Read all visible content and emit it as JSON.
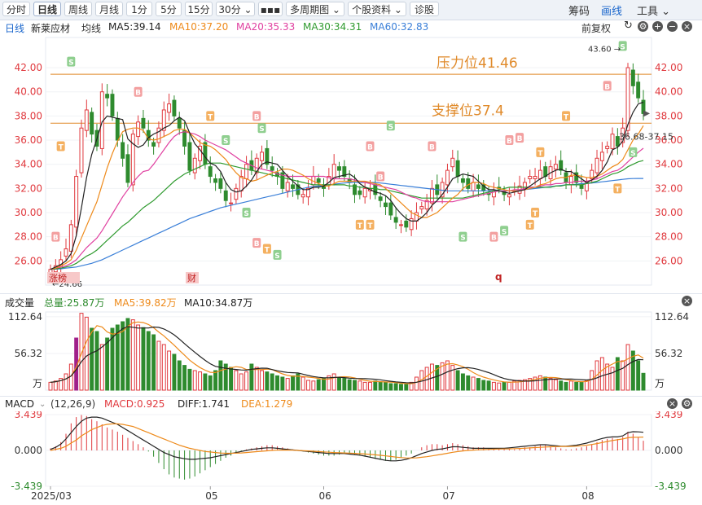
{
  "toolbar": {
    "left_buttons": [
      "分时",
      "日线",
      "周线",
      "月线",
      "1分",
      "5分",
      "15分",
      "30分 ⌄",
      "▪▪▪",
      "多周期图 ⌄",
      "个股资料 ⌄",
      "诊股"
    ],
    "active": "日线",
    "right_items": [
      "筹码",
      "画线",
      "工具 ⌄"
    ]
  },
  "info": {
    "period": "日线",
    "name": "新莱应材",
    "ma_label": "均线",
    "ma5": "MA5:39.14",
    "ma10": "MA10:37.20",
    "ma20": "MA20:35.33",
    "ma30": "MA30:34.31",
    "ma60": "MA60:32.83",
    "adjust": "前复权"
  },
  "colors": {
    "up": "#e0393e",
    "down": "#2e8b2e",
    "ma5": "#222222",
    "ma10": "#ee8a1a",
    "ma20": "#e040a0",
    "ma30": "#2e9a2e",
    "ma60": "#3a7fd8",
    "resistance": "#e08a2a",
    "support": "#e08a2a"
  },
  "annotations": {
    "resistance_label": "压力位41.46",
    "support_label": "支撑位37.4",
    "high_label": "43.60",
    "low_label": "24.66",
    "last_label": "36.68-37.15",
    "event1": "涨榜",
    "event2": "财",
    "event3": "q"
  },
  "volume_info": {
    "title": "成交量",
    "total": "总量:25.87万",
    "ma5": "MA5:39.82万",
    "ma10": "MA10:34.87万",
    "unit": "万"
  },
  "macd_info": {
    "title": "MACD",
    "params": "(12,26,9)",
    "macd": "MACD:0.925",
    "diff": "DIFF:1.741",
    "dea": "DEA:1.279"
  },
  "chart_data": [
    {
      "type": "candlestick",
      "title": "",
      "y_ticks": [
        26.0,
        28.0,
        30.0,
        32.0,
        34.0,
        36.0,
        38.0,
        40.0,
        42.0
      ],
      "ylim": [
        24.0,
        44.5
      ],
      "x_ticks": [
        "2025/03",
        "05",
        "06",
        "07",
        "08"
      ],
      "x_tick_index": [
        0,
        31,
        53,
        77,
        104
      ],
      "resistance": 41.46,
      "support": 37.4,
      "high": 43.6,
      "low": 24.66,
      "closes": [
        25.3,
        25.6,
        26.1,
        27.0,
        29.0,
        33.0,
        37.0,
        38.5,
        36.5,
        35.5,
        40.0,
        39.5,
        38.0,
        36.0,
        34.5,
        32.5,
        36.5,
        37.5,
        37.0,
        36.0,
        35.5,
        37.0,
        38.5,
        39.0,
        38.0,
        37.0,
        35.5,
        33.5,
        34.5,
        35.5,
        34.0,
        33.0,
        32.5,
        32.0,
        31.0,
        30.8,
        32.0,
        33.0,
        34.0,
        33.5,
        34.5,
        35.0,
        34.0,
        33.5,
        33.0,
        32.0,
        32.5,
        32.0,
        31.5,
        31.5,
        32.0,
        33.0,
        32.5,
        32.0,
        33.0,
        34.0,
        33.5,
        33.0,
        32.5,
        31.5,
        31.5,
        32.0,
        32.0,
        31.5,
        31.0,
        30.5,
        29.8,
        29.2,
        29.0,
        28.8,
        29.5,
        30.0,
        30.5,
        31.0,
        32.0,
        31.5,
        32.5,
        33.5,
        34.5,
        33.0,
        32.5,
        32.0,
        32.5,
        32.0,
        31.8,
        31.5,
        31.8,
        32.0,
        31.5,
        31.5,
        31.8,
        32.2,
        32.5,
        33.0,
        33.0,
        33.5,
        33.0,
        33.8,
        34.0,
        33.5,
        32.5,
        33.0,
        32.5,
        32.0,
        32.5,
        33.5,
        34.5,
        35.0,
        35.5,
        36.5,
        35.5,
        37.0,
        42.0,
        40.5,
        39.5,
        38.2
      ],
      "ma5": [
        25.3,
        25.5,
        25.7,
        26.0,
        26.6,
        28.1,
        30.4,
        32.9,
        34.8,
        36.1,
        37.5,
        38.0,
        37.9,
        37.8,
        37.7,
        36.1,
        35.7,
        35.4,
        35.6,
        36.2,
        36.5,
        36.7,
        37.0,
        37.2,
        37.6,
        37.9,
        37.6,
        36.6,
        35.7,
        35.2,
        34.6,
        34.1,
        33.9,
        33.4,
        32.5,
        31.9,
        31.7,
        31.8,
        32.2,
        32.7,
        33.4,
        34.0,
        34.2,
        34.1,
        34.0,
        33.5,
        33.0,
        32.6,
        32.2,
        31.9,
        31.9,
        32.1,
        32.1,
        32.2,
        32.5,
        32.9,
        33.0,
        33.1,
        33.2,
        32.9,
        32.4,
        32.1,
        31.9,
        31.7,
        31.6,
        31.4,
        31.0,
        30.4,
        29.9,
        29.5,
        29.3,
        29.3,
        29.6,
        30.0,
        30.6,
        31.0,
        31.5,
        32.1,
        32.8,
        33.0,
        33.2,
        33.1,
        33.0,
        32.6,
        32.2,
        31.9,
        31.9,
        31.8,
        31.7,
        31.6,
        31.7,
        31.8,
        31.9,
        32.2,
        32.5,
        32.8,
        33.0,
        33.3,
        33.5,
        33.6,
        33.4,
        33.4,
        33.1,
        32.8,
        32.5,
        32.7,
        33.0,
        33.5,
        34.2,
        35.2,
        35.4,
        35.9,
        37.3,
        38.3,
        39.0,
        39.14
      ],
      "ma10": [
        25.3,
        25.4,
        25.6,
        25.8,
        26.1,
        26.9,
        27.9,
        28.9,
        29.9,
        30.9,
        32.3,
        33.7,
        34.9,
        35.9,
        36.7,
        36.9,
        37.0,
        37.0,
        36.8,
        36.1,
        36.0,
        36.1,
        36.3,
        36.5,
        36.8,
        36.9,
        36.9,
        36.6,
        36.2,
        35.8,
        35.6,
        35.5,
        35.2,
        34.8,
        34.4,
        33.8,
        33.3,
        32.9,
        32.8,
        32.6,
        32.7,
        32.9,
        33.1,
        33.3,
        33.4,
        33.6,
        33.6,
        33.5,
        33.3,
        33.1,
        32.8,
        32.6,
        32.4,
        32.2,
        32.2,
        32.4,
        32.6,
        32.6,
        32.6,
        32.6,
        32.6,
        32.6,
        32.5,
        32.4,
        32.3,
        32.0,
        31.6,
        31.2,
        30.8,
        30.4,
        30.0,
        29.8,
        29.6,
        29.6,
        29.8,
        30.0,
        30.4,
        30.8,
        31.2,
        31.5,
        32.0,
        32.3,
        32.5,
        32.5,
        32.4,
        32.2,
        32.1,
        32.0,
        31.9,
        31.8,
        31.8,
        31.8,
        31.9,
        32.0,
        32.1,
        32.3,
        32.4,
        32.6,
        32.8,
        32.9,
        32.9,
        33.1,
        33.1,
        33.0,
        32.9,
        32.9,
        33.0,
        33.2,
        33.5,
        33.8,
        34.0,
        34.4,
        35.2,
        36.0,
        36.5,
        37.2
      ],
      "ma20": [
        25.3,
        25.4,
        25.5,
        25.6,
        25.8,
        26.1,
        26.6,
        27.1,
        27.5,
        27.9,
        28.5,
        29.2,
        29.9,
        30.6,
        31.3,
        31.9,
        32.5,
        33.0,
        33.4,
        33.5,
        34.0,
        34.6,
        35.2,
        35.8,
        36.3,
        36.6,
        36.7,
        36.6,
        36.5,
        36.3,
        36.0,
        35.8,
        35.6,
        35.4,
        35.2,
        34.9,
        34.6,
        34.3,
        34.1,
        33.9,
        33.7,
        33.6,
        33.5,
        33.4,
        33.2,
        33.1,
        33.0,
        33.0,
        33.0,
        33.0,
        33.0,
        33.0,
        33.0,
        33.0,
        32.9,
        32.8,
        32.8,
        32.8,
        32.8,
        32.7,
        32.6,
        32.5,
        32.4,
        32.3,
        32.2,
        32.1,
        32.0,
        31.9,
        31.7,
        31.5,
        31.3,
        31.2,
        31.0,
        30.9,
        30.9,
        30.9,
        30.9,
        30.9,
        30.9,
        31.0,
        31.1,
        31.2,
        31.3,
        31.4,
        31.5,
        31.6,
        31.7,
        31.8,
        31.8,
        31.8,
        31.9,
        31.9,
        32.0,
        32.1,
        32.1,
        32.2,
        32.3,
        32.3,
        32.4,
        32.4,
        32.5,
        32.5,
        32.6,
        32.6,
        32.6,
        32.7,
        32.8,
        33.0,
        33.2,
        33.4,
        33.5,
        33.8,
        34.2,
        34.6,
        35.0,
        35.33
      ],
      "ma30": [
        25.3,
        25.35,
        25.4,
        25.5,
        25.6,
        25.8,
        26.1,
        26.4,
        26.6,
        26.9,
        27.3,
        27.7,
        28.1,
        28.5,
        28.9,
        29.2,
        29.6,
        30.0,
        30.4,
        30.7,
        31.0,
        31.4,
        31.8,
        32.2,
        32.6,
        32.9,
        33.2,
        33.4,
        33.6,
        33.8,
        34.0,
        34.1,
        34.1,
        34.1,
        34.0,
        33.9,
        33.8,
        33.7,
        33.6,
        33.5,
        33.4,
        33.3,
        33.2,
        33.1,
        33.0,
        32.9,
        32.8,
        32.7,
        32.6,
        32.5,
        32.4,
        32.3,
        32.3,
        32.3,
        32.3,
        32.3,
        32.3,
        32.3,
        32.2,
        32.2,
        32.1,
        32.1,
        32.0,
        32.0,
        31.9,
        31.9,
        31.8,
        31.7,
        31.6,
        31.5,
        31.4,
        31.3,
        31.2,
        31.2,
        31.2,
        31.2,
        31.2,
        31.2,
        31.2,
        31.2,
        31.2,
        31.3,
        31.4,
        31.5,
        31.6,
        31.7,
        31.8,
        31.9,
        32.0,
        32.1,
        32.1,
        32.1,
        32.1,
        32.1,
        32.1,
        32.1,
        32.1,
        32.1,
        32.2,
        32.2,
        32.3,
        32.3,
        32.3,
        32.3,
        32.4,
        32.5,
        32.6,
        32.8,
        33.0,
        33.2,
        33.3,
        33.5,
        33.8,
        34.0,
        34.2,
        34.31
      ],
      "ma60": [
        25.3,
        25.32,
        25.35,
        25.4,
        25.45,
        25.5,
        25.6,
        25.7,
        25.8,
        25.95,
        26.1,
        26.3,
        26.5,
        26.7,
        26.9,
        27.1,
        27.3,
        27.5,
        27.7,
        27.9,
        28.1,
        28.3,
        28.5,
        28.7,
        28.9,
        29.1,
        29.3,
        29.5,
        29.65,
        29.8,
        29.95,
        30.1,
        30.25,
        30.4,
        30.5,
        30.6,
        30.7,
        30.8,
        30.9,
        31.0,
        31.1,
        31.2,
        31.3,
        31.4,
        31.5,
        31.6,
        31.7,
        31.8,
        31.9,
        32.0,
        32.1,
        32.15,
        32.2,
        32.25,
        32.3,
        32.35,
        32.4,
        32.45,
        32.5,
        32.5,
        32.5,
        32.5,
        32.5,
        32.5,
        32.45,
        32.4,
        32.35,
        32.3,
        32.25,
        32.2,
        32.15,
        32.1,
        32.05,
        32.0,
        31.95,
        31.9,
        31.85,
        31.8,
        31.8,
        31.8,
        31.8,
        31.8,
        31.8,
        31.8,
        31.8,
        31.8,
        31.8,
        31.8,
        31.8,
        31.8,
        31.8,
        31.85,
        31.9,
        31.95,
        32.0,
        32.05,
        32.1,
        32.15,
        32.2,
        32.25,
        32.3,
        32.3,
        32.35,
        32.4,
        32.4,
        32.45,
        32.5,
        32.55,
        32.6,
        32.65,
        32.7,
        32.75,
        32.8,
        32.82,
        32.83,
        32.83
      ]
    },
    {
      "type": "bar",
      "title": "成交量",
      "y_ticks": [
        "112.64",
        "56.32"
      ],
      "ylim": [
        0,
        120
      ],
      "unit": "万",
      "values": [
        12,
        14,
        18,
        25,
        40,
        80,
        118,
        112,
        95,
        90,
        70,
        80,
        95,
        100,
        105,
        110,
        108,
        100,
        96,
        90,
        85,
        75,
        70,
        60,
        55,
        45,
        38,
        32,
        30,
        28,
        25,
        22,
        30,
        45,
        40,
        35,
        30,
        25,
        28,
        40,
        35,
        30,
        28,
        25,
        22,
        20,
        18,
        22,
        25,
        20,
        15,
        14,
        16,
        18,
        22,
        25,
        20,
        18,
        16,
        15,
        14,
        12,
        12,
        14,
        13,
        12,
        10,
        10,
        9,
        9,
        12,
        20,
        30,
        35,
        40,
        38,
        42,
        45,
        38,
        30,
        25,
        22,
        20,
        18,
        15,
        14,
        12,
        11,
        12,
        12,
        14,
        15,
        16,
        18,
        20,
        22,
        20,
        18,
        16,
        14,
        12,
        14,
        12,
        13,
        15,
        30,
        45,
        50,
        40,
        35,
        50,
        45,
        70,
        60,
        45,
        25.87
      ]
    },
    {
      "type": "bar",
      "title": "MACD",
      "y_ticks": [
        "3.439",
        "0.000",
        "-3.439"
      ],
      "ylim": [
        -3.439,
        3.439
      ],
      "values": [
        0.2,
        0.4,
        0.8,
        1.6,
        2.6,
        3.2,
        3.4,
        3.3,
        3.0,
        2.8,
        2.5,
        2.2,
        2.0,
        1.8,
        1.5,
        1.2,
        0.9,
        0.6,
        0.3,
        -0.1,
        -0.6,
        -1.2,
        -1.8,
        -2.3,
        -2.6,
        -2.7,
        -2.8,
        -2.7,
        -2.5,
        -2.2,
        -1.9,
        -1.6,
        -1.3,
        -1.0,
        -0.7,
        -0.5,
        -0.3,
        -0.1,
        0.1,
        0.2,
        0.3,
        0.4,
        0.5,
        0.5,
        0.4,
        0.3,
        0.2,
        0.1,
        0.0,
        -0.1,
        -0.2,
        -0.3,
        -0.4,
        -0.5,
        -0.5,
        -0.5,
        -0.4,
        -0.3,
        -0.3,
        -0.4,
        -0.5,
        -0.6,
        -0.7,
        -0.8,
        -0.9,
        -1.0,
        -1.0,
        -0.9,
        -0.7,
        -0.5,
        -0.3,
        0.0,
        0.3,
        0.5,
        0.6,
        0.6,
        0.5,
        0.6,
        0.7,
        0.6,
        0.5,
        0.4,
        0.3,
        0.3,
        0.3,
        0.2,
        0.2,
        0.1,
        0.1,
        0.1,
        0.1,
        0.2,
        0.3,
        0.3,
        0.4,
        0.5,
        0.5,
        0.4,
        0.3,
        0.2,
        0.1,
        0.1,
        0.2,
        0.3,
        0.4,
        0.6,
        0.8,
        1.0,
        1.1,
        1.2,
        1.1,
        1.3,
        1.8,
        1.6,
        1.3,
        0.925
      ],
      "diff": [
        0.1,
        0.3,
        0.6,
        1.1,
        1.7,
        2.3,
        2.8,
        3.1,
        3.2,
        3.2,
        3.1,
        2.9,
        2.7,
        2.5,
        2.2,
        1.9,
        1.6,
        1.3,
        1.0,
        0.7,
        0.4,
        0.1,
        -0.2,
        -0.4,
        -0.6,
        -0.7,
        -0.8,
        -0.85,
        -0.85,
        -0.8,
        -0.75,
        -0.7,
        -0.6,
        -0.5,
        -0.4,
        -0.3,
        -0.2,
        -0.1,
        0.0,
        0.1,
        0.15,
        0.2,
        0.25,
        0.25,
        0.2,
        0.15,
        0.1,
        0.05,
        0.0,
        -0.05,
        -0.1,
        -0.15,
        -0.2,
        -0.25,
        -0.3,
        -0.3,
        -0.3,
        -0.3,
        -0.35,
        -0.4,
        -0.45,
        -0.55,
        -0.65,
        -0.75,
        -0.85,
        -0.95,
        -1.0,
        -1.0,
        -0.95,
        -0.85,
        -0.7,
        -0.5,
        -0.3,
        -0.15,
        0.0,
        0.1,
        0.15,
        0.25,
        0.35,
        0.35,
        0.3,
        0.25,
        0.2,
        0.2,
        0.2,
        0.2,
        0.2,
        0.2,
        0.2,
        0.25,
        0.3,
        0.35,
        0.4,
        0.45,
        0.5,
        0.55,
        0.55,
        0.5,
        0.45,
        0.4,
        0.4,
        0.45,
        0.5,
        0.6,
        0.7,
        0.85,
        1.0,
        1.15,
        1.25,
        1.3,
        1.3,
        1.4,
        1.7,
        1.8,
        1.78,
        1.741
      ],
      "dea": [
        0.0,
        0.1,
        0.2,
        0.4,
        0.7,
        1.0,
        1.4,
        1.7,
        2.0,
        2.2,
        2.4,
        2.5,
        2.55,
        2.55,
        2.5,
        2.4,
        2.3,
        2.1,
        1.9,
        1.7,
        1.5,
        1.3,
        1.1,
        0.9,
        0.7,
        0.5,
        0.35,
        0.2,
        0.1,
        0.0,
        -0.1,
        -0.15,
        -0.2,
        -0.25,
        -0.27,
        -0.27,
        -0.26,
        -0.24,
        -0.2,
        -0.16,
        -0.12,
        -0.08,
        -0.04,
        0.0,
        0.02,
        0.03,
        0.03,
        0.02,
        0.0,
        -0.02,
        -0.05,
        -0.08,
        -0.11,
        -0.14,
        -0.17,
        -0.2,
        -0.22,
        -0.24,
        -0.26,
        -0.28,
        -0.31,
        -0.34,
        -0.38,
        -0.42,
        -0.47,
        -0.52,
        -0.58,
        -0.64,
        -0.69,
        -0.72,
        -0.73,
        -0.71,
        -0.66,
        -0.6,
        -0.52,
        -0.44,
        -0.36,
        -0.27,
        -0.18,
        -0.11,
        -0.05,
        0.0,
        0.03,
        0.06,
        0.08,
        0.1,
        0.12,
        0.13,
        0.14,
        0.15,
        0.17,
        0.19,
        0.21,
        0.24,
        0.27,
        0.3,
        0.33,
        0.35,
        0.37,
        0.38,
        0.38,
        0.39,
        0.41,
        0.45,
        0.5,
        0.57,
        0.66,
        0.76,
        0.86,
        0.95,
        1.02,
        1.1,
        1.22,
        1.26,
        1.27,
        1.279
      ]
    }
  ]
}
